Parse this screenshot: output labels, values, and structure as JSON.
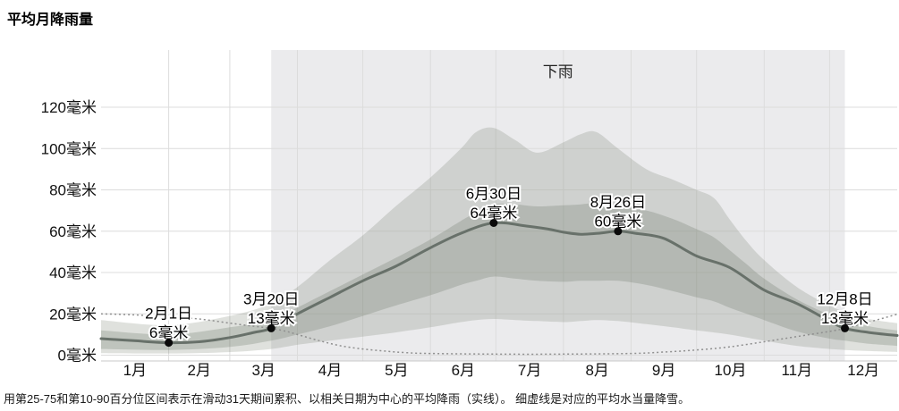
{
  "title": "平均月降雨量",
  "caption": "用第25-75和第10-90百分位区间表示在滑动31天期间累积、以相关日期为中心的平均降雨（实线）。 细虚线是对应的平均水当量降雪。",
  "colors": {
    "mean_line": "#68716a",
    "percentile_band": "#6d7866",
    "season_band_bg": "#ebebed",
    "snow_line": "#8f8f8f",
    "dot": "#0a0a0a",
    "grid": "#dcdcdc",
    "axis_line": "#c9c9c9",
    "text": "#111111"
  },
  "chart_data": {
    "type": "area",
    "title": "平均月降雨量",
    "unit": "毫米",
    "ylim": [
      0,
      120
    ],
    "y_ticks": [
      0,
      20,
      40,
      60,
      80,
      100,
      120
    ],
    "y_tick_suffix": "毫米",
    "x_tick_labels": [
      "1月",
      "2月",
      "3月",
      "4月",
      "5月",
      "6月",
      "7月",
      "8月",
      "9月",
      "10月",
      "11月",
      "12月"
    ],
    "x_axis_days": 365,
    "grid": true,
    "legend_position": "none",
    "rain_season": {
      "label": "下雨",
      "start_day": 78,
      "end_day": 341
    },
    "series": [
      {
        "id": "rain_mean",
        "name": "平均降雨（实线）",
        "style": "solid",
        "points": [
          [
            0,
            8
          ],
          [
            15,
            7
          ],
          [
            31,
            6
          ],
          [
            45,
            6.5
          ],
          [
            59,
            8.5
          ],
          [
            70,
            11
          ],
          [
            78,
            13
          ],
          [
            90,
            20
          ],
          [
            105,
            28
          ],
          [
            120,
            36
          ],
          [
            135,
            43
          ],
          [
            151,
            52
          ],
          [
            165,
            59
          ],
          [
            180,
            64
          ],
          [
            195,
            62.5
          ],
          [
            205,
            61
          ],
          [
            212,
            59.5
          ],
          [
            220,
            58.5
          ],
          [
            228,
            59
          ],
          [
            237,
            60
          ],
          [
            245,
            59
          ],
          [
            258,
            56.5
          ],
          [
            273,
            48
          ],
          [
            288,
            42.5
          ],
          [
            304,
            31.5
          ],
          [
            319,
            25
          ],
          [
            334,
            16.5
          ],
          [
            341,
            13
          ],
          [
            352,
            11
          ],
          [
            365,
            9.5
          ]
        ]
      },
      {
        "id": "p25_75",
        "name": "第25-75百分位区间",
        "style": "band",
        "upper": [
          [
            0,
            12
          ],
          [
            31,
            10
          ],
          [
            59,
            13.5
          ],
          [
            78,
            17
          ],
          [
            90,
            23
          ],
          [
            105,
            31
          ],
          [
            120,
            39
          ],
          [
            135,
            47
          ],
          [
            151,
            56
          ],
          [
            165,
            65
          ],
          [
            172,
            69
          ],
          [
            180,
            73
          ],
          [
            190,
            73
          ],
          [
            200,
            72
          ],
          [
            212,
            72.5
          ],
          [
            220,
            73
          ],
          [
            227,
            73.5
          ],
          [
            237,
            72
          ],
          [
            250,
            70
          ],
          [
            262,
            66
          ],
          [
            273,
            61
          ],
          [
            281,
            57
          ],
          [
            288,
            51
          ],
          [
            296,
            44
          ],
          [
            304,
            37
          ],
          [
            319,
            27
          ],
          [
            334,
            19.5
          ],
          [
            341,
            17
          ],
          [
            352,
            14
          ],
          [
            365,
            12
          ]
        ],
        "lower": [
          [
            0,
            3
          ],
          [
            31,
            2.5
          ],
          [
            59,
            4
          ],
          [
            78,
            7
          ],
          [
            90,
            10
          ],
          [
            105,
            14
          ],
          [
            120,
            19
          ],
          [
            135,
            24
          ],
          [
            151,
            29
          ],
          [
            165,
            34
          ],
          [
            172,
            36
          ],
          [
            180,
            38
          ],
          [
            190,
            37
          ],
          [
            200,
            36
          ],
          [
            212,
            35.5
          ],
          [
            220,
            36
          ],
          [
            227,
            36
          ],
          [
            237,
            36
          ],
          [
            250,
            34
          ],
          [
            262,
            31
          ],
          [
            273,
            28
          ],
          [
            281,
            26
          ],
          [
            288,
            23
          ],
          [
            296,
            20
          ],
          [
            304,
            17
          ],
          [
            319,
            11.5
          ],
          [
            334,
            8
          ],
          [
            341,
            7
          ],
          [
            352,
            5.5
          ],
          [
            365,
            4.5
          ]
        ]
      },
      {
        "id": "p10_90",
        "name": "第10-90百分位区间",
        "style": "band",
        "upper": [
          [
            0,
            17
          ],
          [
            31,
            14.5
          ],
          [
            59,
            19
          ],
          [
            78,
            25
          ],
          [
            90,
            33
          ],
          [
            105,
            46
          ],
          [
            120,
            58
          ],
          [
            135,
            72
          ],
          [
            151,
            86
          ],
          [
            165,
            100
          ],
          [
            172,
            108
          ],
          [
            180,
            110
          ],
          [
            190,
            104
          ],
          [
            200,
            98
          ],
          [
            212,
            103
          ],
          [
            220,
            107
          ],
          [
            227,
            108
          ],
          [
            237,
            100
          ],
          [
            250,
            90
          ],
          [
            262,
            85
          ],
          [
            273,
            80
          ],
          [
            281,
            76
          ],
          [
            288,
            66
          ],
          [
            296,
            55
          ],
          [
            304,
            46
          ],
          [
            319,
            33
          ],
          [
            334,
            24
          ],
          [
            341,
            21
          ],
          [
            352,
            17.5
          ],
          [
            365,
            15.5
          ]
        ],
        "lower": [
          [
            0,
            1
          ],
          [
            31,
            0.8
          ],
          [
            59,
            1.5
          ],
          [
            78,
            3
          ],
          [
            90,
            5
          ],
          [
            105,
            7
          ],
          [
            120,
            9
          ],
          [
            135,
            11
          ],
          [
            151,
            13.5
          ],
          [
            165,
            16
          ],
          [
            172,
            17
          ],
          [
            180,
            17.5
          ],
          [
            190,
            17
          ],
          [
            200,
            16.5
          ],
          [
            212,
            16
          ],
          [
            220,
            16.5
          ],
          [
            227,
            17
          ],
          [
            237,
            16.5
          ],
          [
            250,
            15
          ],
          [
            262,
            13.5
          ],
          [
            273,
            12
          ],
          [
            281,
            11
          ],
          [
            288,
            10
          ],
          [
            296,
            8.5
          ],
          [
            304,
            7
          ],
          [
            319,
            4.5
          ],
          [
            334,
            3
          ],
          [
            341,
            2.5
          ],
          [
            352,
            2
          ],
          [
            365,
            1.5
          ]
        ]
      },
      {
        "id": "snow_eq",
        "name": "平均水当量降雪（细虚线）",
        "style": "dotted",
        "points": [
          [
            0,
            20
          ],
          [
            15,
            19.5
          ],
          [
            31,
            18.5
          ],
          [
            45,
            17.5
          ],
          [
            59,
            15.5
          ],
          [
            70,
            14
          ],
          [
            78,
            13
          ],
          [
            85,
            11.5
          ],
          [
            90,
            10
          ],
          [
            100,
            7
          ],
          [
            110,
            4.5
          ],
          [
            120,
            3
          ],
          [
            130,
            2
          ],
          [
            140,
            1.2
          ],
          [
            151,
            0.8
          ],
          [
            181,
            0.5
          ],
          [
            212,
            0.5
          ],
          [
            243,
            0.8
          ],
          [
            258,
            1.5
          ],
          [
            273,
            2.5
          ],
          [
            288,
            4
          ],
          [
            304,
            6.5
          ],
          [
            319,
            9
          ],
          [
            334,
            11.5
          ],
          [
            341,
            13
          ],
          [
            352,
            16
          ],
          [
            365,
            19.8
          ]
        ]
      }
    ],
    "annotations": [
      {
        "date": "2月1日",
        "label": "6毫米",
        "day": 31,
        "value": 6
      },
      {
        "date": "3月20日",
        "label": "13毫米",
        "day": 78,
        "value": 13
      },
      {
        "date": "6月30日",
        "label": "64毫米",
        "day": 180,
        "value": 64
      },
      {
        "date": "8月26日",
        "label": "60毫米",
        "day": 237,
        "value": 60
      },
      {
        "date": "12月8日",
        "label": "13毫米",
        "day": 341,
        "value": 13
      }
    ]
  }
}
